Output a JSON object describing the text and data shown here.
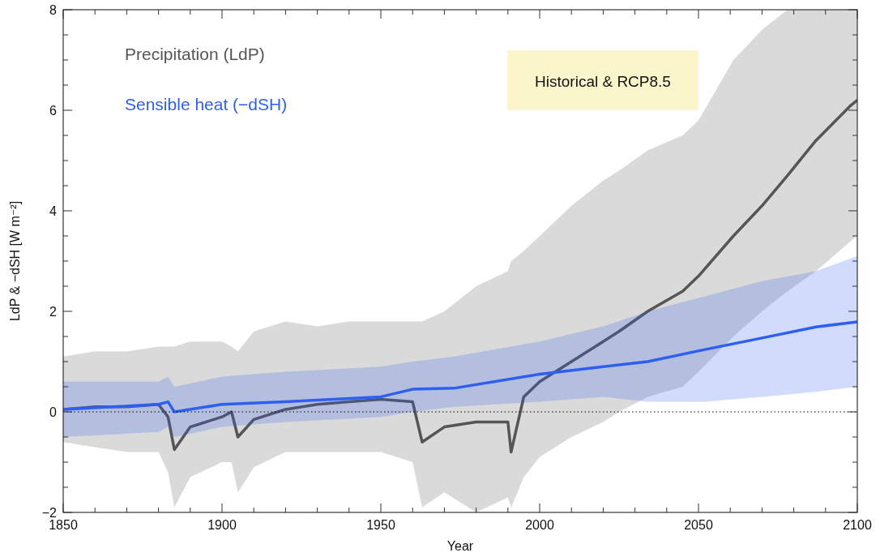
{
  "chart_data": {
    "type": "line",
    "xlabel": "Year",
    "ylabel": "LdP & −dSH [W m⁻²]",
    "xlim": [
      1850,
      2100
    ],
    "ylim": [
      -2,
      8
    ],
    "xticks": [
      1850,
      {
        "value": 1860,
        "label": null
      },
      {
        "value": 1870,
        "label": null
      },
      {
        "value": 1880,
        "label": null
      },
      {
        "value": 1890,
        "label": null
      },
      1900,
      {
        "value": 1910,
        "label": null
      },
      {
        "value": 1920,
        "label": null
      },
      {
        "value": 1930,
        "label": null
      },
      {
        "value": 1940,
        "label": null
      },
      1950,
      {
        "value": 1960,
        "label": null
      },
      {
        "value": 1970,
        "label": null
      },
      {
        "value": 1980,
        "label": null
      },
      {
        "value": 1990,
        "label": null
      },
      2000,
      {
        "value": 2010,
        "label": null
      },
      {
        "value": 2020,
        "label": null
      },
      {
        "value": 2030,
        "label": null
      },
      {
        "value": 2040,
        "label": null
      },
      2050,
      {
        "value": 2060,
        "label": null
      },
      {
        "value": 2070,
        "label": null
      },
      {
        "value": 2080,
        "label": null
      },
      {
        "value": 2090,
        "label": null
      },
      2100
    ],
    "yticks": [
      -2,
      {
        "value": -1.5,
        "label": null
      },
      {
        "value": -1,
        "label": null
      },
      {
        "value": -0.5,
        "label": null
      },
      0,
      {
        "value": 0.5,
        "label": null
      },
      {
        "value": 1,
        "label": null
      },
      {
        "value": 1.5,
        "label": null
      },
      2,
      {
        "value": 2.5,
        "label": null
      },
      {
        "value": 3,
        "label": null
      },
      {
        "value": 3.5,
        "label": null
      },
      4,
      {
        "value": 4.5,
        "label": null
      },
      {
        "value": 5,
        "label": null
      },
      {
        "value": 5.5,
        "label": null
      },
      6,
      {
        "value": 6.5,
        "label": null
      },
      {
        "value": 7,
        "label": null
      },
      {
        "value": 7.5,
        "label": null
      },
      8
    ],
    "legend": "top left",
    "grid": false,
    "line_style": "solid",
    "marker": "none",
    "ref_lines": [
      {
        "axis": "y",
        "value": 0,
        "color": "#000000",
        "line_style": "dotted"
      }
    ],
    "annotations": [
      "Historical & RCP8.5"
    ],
    "series": [
      {
        "name": "Precipitation (LdP)",
        "color": "#555555",
        "x": [
          1850,
          1860,
          1870,
          1880,
          1883,
          1885,
          1890,
          1900,
          1903,
          1905,
          1910,
          1920,
          1930,
          1940,
          1950,
          1960,
          1963,
          1970,
          1980,
          1990,
          1991,
          1995,
          2000,
          2010,
          2020,
          2025,
          2034,
          2045,
          2050,
          2061,
          2070,
          2078,
          2087,
          2098,
          2100
        ],
        "values": [
          0.05,
          0.1,
          0.1,
          0.15,
          -0.1,
          -0.75,
          -0.3,
          -0.1,
          0,
          -0.5,
          -0.15,
          0.05,
          0.15,
          0.2,
          0.25,
          0.2,
          -0.6,
          -0.3,
          -0.2,
          -0.2,
          -0.8,
          0.3,
          0.6,
          1.0,
          1.4,
          1.6,
          2.0,
          2.4,
          2.7,
          3.5,
          4.1,
          4.7,
          5.4,
          6.1,
          6.2
        ],
        "lower": [
          -0.6,
          -0.7,
          -0.8,
          -0.8,
          -1.2,
          -1.9,
          -1.3,
          -1.0,
          -1.0,
          -1.6,
          -1.1,
          -0.8,
          -0.8,
          -0.8,
          -0.8,
          -1.0,
          -1.9,
          -1.6,
          -2.0,
          -1.7,
          -1.9,
          -1.3,
          -0.9,
          -0.5,
          -0.2,
          0.0,
          0.3,
          0.5,
          0.8,
          1.5,
          2.0,
          2.4,
          2.8,
          3.4,
          3.5
        ],
        "upper": [
          1.1,
          1.2,
          1.2,
          1.3,
          1.3,
          1.3,
          1.4,
          1.4,
          1.3,
          1.2,
          1.6,
          1.8,
          1.7,
          1.8,
          1.8,
          1.8,
          1.8,
          2.0,
          2.5,
          2.8,
          3.0,
          3.2,
          3.5,
          4.1,
          4.6,
          4.8,
          5.2,
          5.5,
          5.8,
          7.0,
          7.6,
          8.0,
          8.0,
          8.0,
          8.0
        ]
      },
      {
        "name": "Sensible heat (−dSH)",
        "color": "#2f5ff0",
        "x": [
          1850,
          1880,
          1883,
          1885,
          1900,
          1920,
          1950,
          1960,
          1973,
          2000,
          2020,
          2034,
          2052,
          2070,
          2087,
          2100
        ],
        "values": [
          0.05,
          0.15,
          0.2,
          0.0,
          0.15,
          0.2,
          0.3,
          0.45,
          0.47,
          0.75,
          0.9,
          1.0,
          1.24,
          1.47,
          1.69,
          1.79
        ],
        "lower": [
          -0.5,
          -0.4,
          -0.3,
          -0.5,
          -0.3,
          -0.2,
          -0.1,
          0.0,
          0.1,
          0.2,
          0.3,
          0.2,
          0.2,
          0.3,
          0.4,
          0.5
        ],
        "upper": [
          0.6,
          0.6,
          0.7,
          0.5,
          0.7,
          0.8,
          0.9,
          1.0,
          1.1,
          1.4,
          1.7,
          2.0,
          2.3,
          2.6,
          2.8,
          3.1
        ]
      }
    ]
  }
}
